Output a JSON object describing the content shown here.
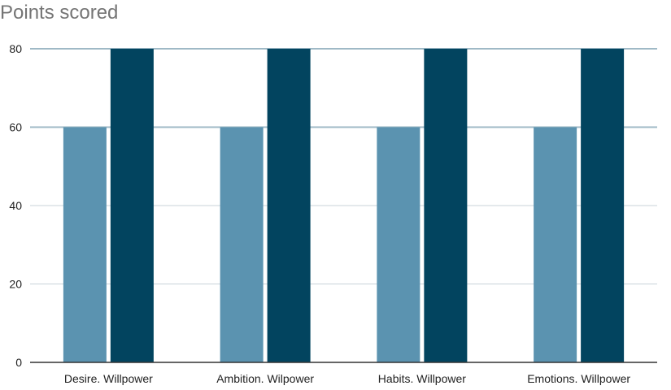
{
  "chart_data": {
    "type": "bar",
    "title": "Points scored",
    "xlabel": "",
    "ylabel": "",
    "categories": [
      "Desire. Willpower",
      "Ambition. Wilpower",
      "Habits. Willpower",
      "Emotions. Willpower"
    ],
    "series": [
      {
        "values": [
          60,
          60,
          60,
          60
        ]
      },
      {
        "values": [
          80,
          80,
          80,
          80
        ]
      }
    ],
    "ylim": [
      0,
      80
    ],
    "yticks": [
      0,
      20,
      40,
      60,
      80
    ],
    "grid": true,
    "legend": "none",
    "colors": {
      "series": [
        "#5b93b0",
        "#02445f"
      ],
      "grid": "#c8d3d9",
      "axis": "#333333"
    }
  }
}
